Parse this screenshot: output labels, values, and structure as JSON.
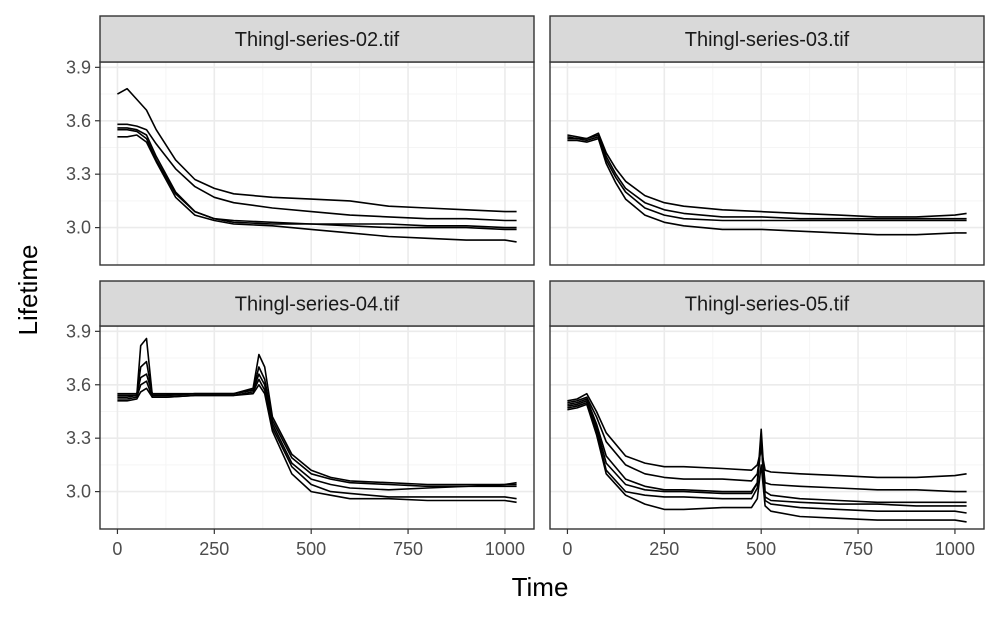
{
  "colors": {
    "line": "#000000",
    "strip_fill": "#d9d9d9",
    "panel_border": "#333333",
    "grid_major": "#ebebeb",
    "grid_minor": "#f5f5f5",
    "tick_label": "#4d4d4d"
  },
  "chart_data": {
    "type": "line",
    "xlabel": "Time",
    "ylabel": "Lifetime",
    "xlim": [
      -45,
      1075
    ],
    "ylim": [
      2.79,
      3.93
    ],
    "xticks": [
      0,
      250,
      500,
      750,
      1000
    ],
    "xtick_labels": [
      "0",
      "250",
      "500",
      "750",
      "1000"
    ],
    "yticks": [
      3.0,
      3.3,
      3.6,
      3.9
    ],
    "ytick_labels": [
      "3.0",
      "3.3",
      "3.6",
      "3.9"
    ],
    "grid": true,
    "layout": "2x2 facets",
    "panels": [
      {
        "strip": "Thingl-series-02.tif",
        "series": [
          {
            "x": [
              0,
              25,
              50,
              75,
              100,
              150,
              200,
              250,
              300,
              400,
              500,
              600,
              700,
              800,
              900,
              1000,
              1030
            ],
            "y": [
              3.75,
              3.78,
              3.72,
              3.66,
              3.55,
              3.38,
              3.27,
              3.22,
              3.19,
              3.17,
              3.16,
              3.15,
              3.12,
              3.11,
              3.1,
              3.09,
              3.09
            ]
          },
          {
            "x": [
              0,
              25,
              50,
              75,
              100,
              150,
              200,
              250,
              300,
              400,
              500,
              600,
              700,
              800,
              900,
              1000,
              1030
            ],
            "y": [
              3.58,
              3.58,
              3.57,
              3.55,
              3.47,
              3.33,
              3.23,
              3.17,
              3.14,
              3.11,
              3.09,
              3.07,
              3.06,
              3.05,
              3.05,
              3.04,
              3.04
            ]
          },
          {
            "x": [
              0,
              25,
              50,
              75,
              100,
              150,
              200,
              250,
              300,
              400,
              500,
              600,
              700,
              800,
              900,
              1000,
              1030
            ],
            "y": [
              3.56,
              3.56,
              3.55,
              3.52,
              3.4,
              3.2,
              3.09,
              3.05,
              3.03,
              3.02,
              3.02,
              3.01,
              3.0,
              3.0,
              3.0,
              2.99,
              2.99
            ]
          },
          {
            "x": [
              0,
              25,
              50,
              75,
              100,
              150,
              200,
              250,
              300,
              400,
              500,
              600,
              700,
              800,
              900,
              1000,
              1030
            ],
            "y": [
              3.55,
              3.55,
              3.54,
              3.5,
              3.38,
              3.19,
              3.09,
              3.05,
              3.04,
              3.03,
              3.02,
              3.02,
              3.02,
              3.01,
              3.01,
              3.0,
              3.0
            ]
          },
          {
            "x": [
              0,
              25,
              50,
              75,
              100,
              150,
              200,
              250,
              300,
              400,
              500,
              600,
              700,
              800,
              900,
              1000,
              1030
            ],
            "y": [
              3.51,
              3.51,
              3.52,
              3.48,
              3.37,
              3.17,
              3.07,
              3.04,
              3.02,
              3.01,
              2.99,
              2.97,
              2.95,
              2.94,
              2.93,
              2.93,
              2.92
            ]
          }
        ]
      },
      {
        "strip": "Thingl-series-03.tif",
        "series": [
          {
            "x": [
              0,
              25,
              50,
              80,
              100,
              125,
              150,
              200,
              250,
              300,
              400,
              500,
              600,
              700,
              800,
              900,
              1000,
              1030
            ],
            "y": [
              3.52,
              3.51,
              3.5,
              3.53,
              3.42,
              3.33,
              3.26,
              3.18,
              3.14,
              3.12,
              3.1,
              3.09,
              3.08,
              3.07,
              3.06,
              3.06,
              3.07,
              3.08
            ]
          },
          {
            "x": [
              0,
              25,
              50,
              80,
              100,
              125,
              150,
              200,
              250,
              300,
              400,
              500,
              600,
              700,
              800,
              900,
              1000,
              1030
            ],
            "y": [
              3.51,
              3.5,
              3.5,
              3.52,
              3.4,
              3.3,
              3.22,
              3.14,
              3.1,
              3.08,
              3.06,
              3.06,
              3.05,
              3.05,
              3.05,
              3.05,
              3.05,
              3.05
            ]
          },
          {
            "x": [
              0,
              25,
              50,
              80,
              100,
              125,
              150,
              200,
              250,
              300,
              400,
              500,
              600,
              700,
              800,
              900,
              1000,
              1030
            ],
            "y": [
              3.5,
              3.5,
              3.49,
              3.51,
              3.38,
              3.28,
              3.2,
              3.11,
              3.07,
              3.05,
              3.04,
              3.04,
              3.04,
              3.04,
              3.04,
              3.04,
              3.04,
              3.04
            ]
          },
          {
            "x": [
              0,
              25,
              50,
              80,
              100,
              125,
              150,
              200,
              250,
              300,
              400,
              500,
              600,
              700,
              800,
              900,
              1000,
              1030
            ],
            "y": [
              3.49,
              3.49,
              3.48,
              3.5,
              3.36,
              3.25,
              3.16,
              3.07,
              3.03,
              3.01,
              2.99,
              2.99,
              2.98,
              2.97,
              2.96,
              2.96,
              2.97,
              2.97
            ]
          }
        ]
      },
      {
        "strip": "Thingl-series-04.tif",
        "series": [
          {
            "x": [
              0,
              25,
              50,
              60,
              75,
              90,
              125,
              200,
              300,
              350,
              365,
              380,
              400,
              450,
              500,
              550,
              600,
              700,
              800,
              900,
              1000,
              1030
            ],
            "y": [
              3.54,
              3.54,
              3.54,
              3.82,
              3.86,
              3.54,
              3.54,
              3.55,
              3.55,
              3.58,
              3.77,
              3.7,
              3.42,
              3.21,
              3.12,
              3.08,
              3.06,
              3.05,
              3.04,
              3.04,
              3.04,
              3.04
            ]
          },
          {
            "x": [
              0,
              25,
              50,
              60,
              75,
              90,
              125,
              200,
              300,
              350,
              365,
              380,
              400,
              450,
              500,
              550,
              600,
              700,
              800,
              900,
              1000,
              1030
            ],
            "y": [
              3.53,
              3.53,
              3.54,
              3.7,
              3.73,
              3.54,
              3.54,
              3.55,
              3.55,
              3.57,
              3.7,
              3.63,
              3.4,
              3.19,
              3.1,
              3.07,
              3.05,
              3.04,
              3.03,
              3.03,
              3.03,
              3.03
            ]
          },
          {
            "x": [
              0,
              25,
              50,
              60,
              75,
              90,
              125,
              200,
              300,
              350,
              365,
              380,
              400,
              450,
              500,
              550,
              600,
              700,
              800,
              900,
              1000,
              1030
            ],
            "y": [
              3.55,
              3.55,
              3.55,
              3.64,
              3.66,
              3.55,
              3.55,
              3.55,
              3.55,
              3.57,
              3.66,
              3.6,
              3.38,
              3.16,
              3.07,
              3.04,
              3.02,
              3.01,
              3.02,
              3.03,
              3.04,
              3.05
            ]
          },
          {
            "x": [
              0,
              25,
              50,
              60,
              75,
              90,
              125,
              200,
              300,
              350,
              365,
              380,
              400,
              450,
              500,
              550,
              600,
              700,
              800,
              900,
              1000,
              1030
            ],
            "y": [
              3.52,
              3.52,
              3.53,
              3.6,
              3.62,
              3.53,
              3.53,
              3.54,
              3.54,
              3.56,
              3.63,
              3.57,
              3.36,
              3.14,
              3.04,
              3.0,
              2.99,
              2.97,
              2.97,
              2.97,
              2.97,
              2.96
            ]
          },
          {
            "x": [
              0,
              25,
              50,
              60,
              75,
              90,
              125,
              200,
              300,
              350,
              365,
              380,
              400,
              450,
              500,
              550,
              600,
              700,
              800,
              900,
              1000,
              1030
            ],
            "y": [
              3.51,
              3.51,
              3.52,
              3.56,
              3.58,
              3.53,
              3.53,
              3.54,
              3.54,
              3.55,
              3.6,
              3.55,
              3.34,
              3.1,
              3.0,
              2.98,
              2.96,
              2.96,
              2.95,
              2.95,
              2.95,
              2.94
            ]
          }
        ]
      },
      {
        "strip": "Thingl-series-05.tif",
        "series": [
          {
            "x": [
              0,
              25,
              50,
              75,
              100,
              150,
              200,
              250,
              300,
              400,
              475,
              490,
              500,
              510,
              525,
              600,
              700,
              800,
              900,
              1000,
              1030
            ],
            "y": [
              3.51,
              3.52,
              3.55,
              3.45,
              3.33,
              3.2,
              3.16,
              3.14,
              3.14,
              3.13,
              3.12,
              3.15,
              3.24,
              3.12,
              3.11,
              3.1,
              3.09,
              3.08,
              3.08,
              3.09,
              3.1
            ]
          },
          {
            "x": [
              0,
              25,
              50,
              75,
              100,
              150,
              200,
              250,
              300,
              400,
              475,
              490,
              500,
              510,
              525,
              600,
              700,
              800,
              900,
              1000,
              1030
            ],
            "y": [
              3.5,
              3.51,
              3.53,
              3.42,
              3.28,
              3.15,
              3.1,
              3.08,
              3.07,
              3.07,
              3.06,
              3.1,
              3.26,
              3.05,
              3.04,
              3.03,
              3.02,
              3.01,
              3.01,
              3.0,
              3.0
            ]
          },
          {
            "x": [
              0,
              25,
              50,
              75,
              100,
              150,
              200,
              250,
              300,
              400,
              475,
              490,
              500,
              510,
              525,
              600,
              700,
              800,
              900,
              1000,
              1030
            ],
            "y": [
              3.49,
              3.5,
              3.52,
              3.38,
              3.2,
              3.07,
              3.03,
              3.01,
              3.01,
              3.0,
              3.0,
              3.05,
              3.35,
              3.0,
              2.98,
              2.96,
              2.95,
              2.94,
              2.94,
              2.94,
              2.94
            ]
          },
          {
            "x": [
              0,
              25,
              50,
              75,
              100,
              150,
              200,
              250,
              300,
              400,
              475,
              490,
              500,
              510,
              525,
              600,
              700,
              800,
              900,
              1000,
              1030
            ],
            "y": [
              3.48,
              3.49,
              3.51,
              3.36,
              3.16,
              3.04,
              3.01,
              3.0,
              3.0,
              2.99,
              2.99,
              3.05,
              3.28,
              2.97,
              2.95,
              2.94,
              2.93,
              2.93,
              2.92,
              2.92,
              2.92
            ]
          },
          {
            "x": [
              0,
              25,
              50,
              75,
              100,
              150,
              200,
              250,
              300,
              400,
              475,
              490,
              500,
              510,
              525,
              600,
              700,
              800,
              900,
              1000,
              1030
            ],
            "y": [
              3.47,
              3.48,
              3.5,
              3.34,
              3.12,
              3.0,
              2.98,
              2.97,
              2.97,
              2.96,
              2.96,
              3.02,
              3.3,
              2.95,
              2.93,
              2.91,
              2.9,
              2.89,
              2.89,
              2.89,
              2.88
            ]
          },
          {
            "x": [
              0,
              25,
              50,
              75,
              100,
              150,
              200,
              250,
              300,
              400,
              475,
              490,
              500,
              510,
              525,
              600,
              700,
              800,
              900,
              1000,
              1030
            ],
            "y": [
              3.46,
              3.47,
              3.49,
              3.32,
              3.1,
              2.98,
              2.93,
              2.9,
              2.9,
              2.91,
              2.91,
              2.96,
              3.15,
              2.92,
              2.89,
              2.86,
              2.85,
              2.84,
              2.84,
              2.84,
              2.83
            ]
          }
        ]
      }
    ]
  }
}
